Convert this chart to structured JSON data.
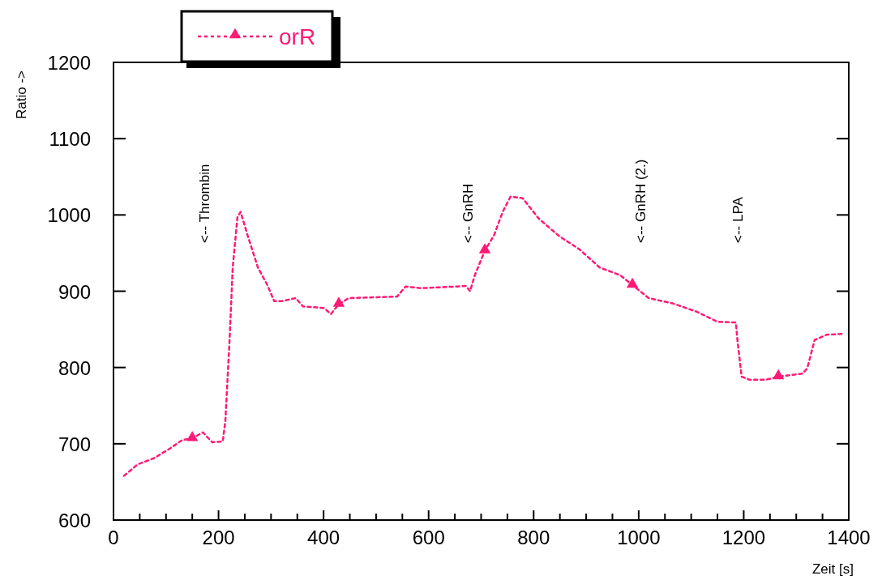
{
  "chart_data": {
    "type": "line",
    "xlabel": "Zeit [s]",
    "ylabel": "Ratio ->",
    "xlim": [
      0,
      1400
    ],
    "ylim": [
      600,
      1200
    ],
    "xticks": [
      0,
      {
        "value": 50,
        "label": null
      },
      200,
      {
        "value": 100,
        "label": null
      },
      {
        "value": 150,
        "label": null
      },
      {
        "value": 250,
        "label": null
      },
      {
        "value": 300,
        "label": null
      },
      {
        "value": 350,
        "label": null
      },
      400,
      {
        "value": 450,
        "label": null
      },
      {
        "value": 500,
        "label": null
      },
      {
        "value": 550,
        "label": null
      },
      600,
      {
        "value": 650,
        "label": null
      },
      {
        "value": 700,
        "label": null
      },
      {
        "value": 750,
        "label": null
      },
      800,
      {
        "value": 850,
        "label": null
      },
      {
        "value": 900,
        "label": null
      },
      {
        "value": 950,
        "label": null
      },
      1000,
      {
        "value": 1050,
        "label": null
      },
      {
        "value": 1100,
        "label": null
      },
      {
        "value": 1150,
        "label": null
      },
      1200,
      {
        "value": 1250,
        "label": null
      },
      {
        "value": 1300,
        "label": null
      },
      {
        "value": 1350,
        "label": null
      },
      1400
    ],
    "yticks": [
      600,
      700,
      800,
      900,
      1000,
      1100,
      1200
    ],
    "legend": "top left",
    "line_style": "dotted",
    "series": [
      {
        "name": "orR",
        "color": "#ff1a75",
        "marker": "none",
        "x": [
          20,
          46,
          77,
          108,
          131,
          150,
          170,
          188,
          208,
          213,
          221,
          227,
          236,
          242,
          255,
          275,
          293,
          306,
          321,
          347,
          361,
          401,
          414,
          429,
          448,
          494,
          540,
          556,
          586,
          648,
          671,
          679,
          688,
          707,
          725,
          741,
          756,
          779,
          810,
          849,
          887,
          926,
          965,
          988,
          1019,
          1065,
          1111,
          1150,
          1185,
          1188,
          1196,
          1211,
          1242,
          1266,
          1312,
          1321,
          1335,
          1358,
          1389
        ],
        "values": [
          658,
          673,
          681,
          694,
          705,
          707,
          715,
          702,
          703,
          730,
          836,
          931,
          997,
          1004,
          974,
          931,
          908,
          887,
          887,
          891,
          880,
          878,
          870,
          883,
          891,
          892,
          893,
          906,
          904,
          906,
          907,
          900,
          921,
          953,
          974,
          1004,
          1024,
          1022,
          995,
          972,
          955,
          931,
          921,
          908,
          891,
          884,
          873,
          860,
          859,
          836,
          788,
          784,
          784,
          788,
          792,
          799,
          836,
          843,
          844
        ]
      },
      {
        "color": "#ff1a75",
        "type": "scatter",
        "marker": "triangle",
        "x": [
          150,
          429,
          707,
          988,
          1266
        ],
        "values": [
          707,
          883,
          953,
          908,
          788
        ]
      }
    ],
    "annotations": [
      "<-- Thrombin",
      "<-- GnRH",
      "<-- GnRH (2.)",
      "<-- LPA"
    ]
  }
}
